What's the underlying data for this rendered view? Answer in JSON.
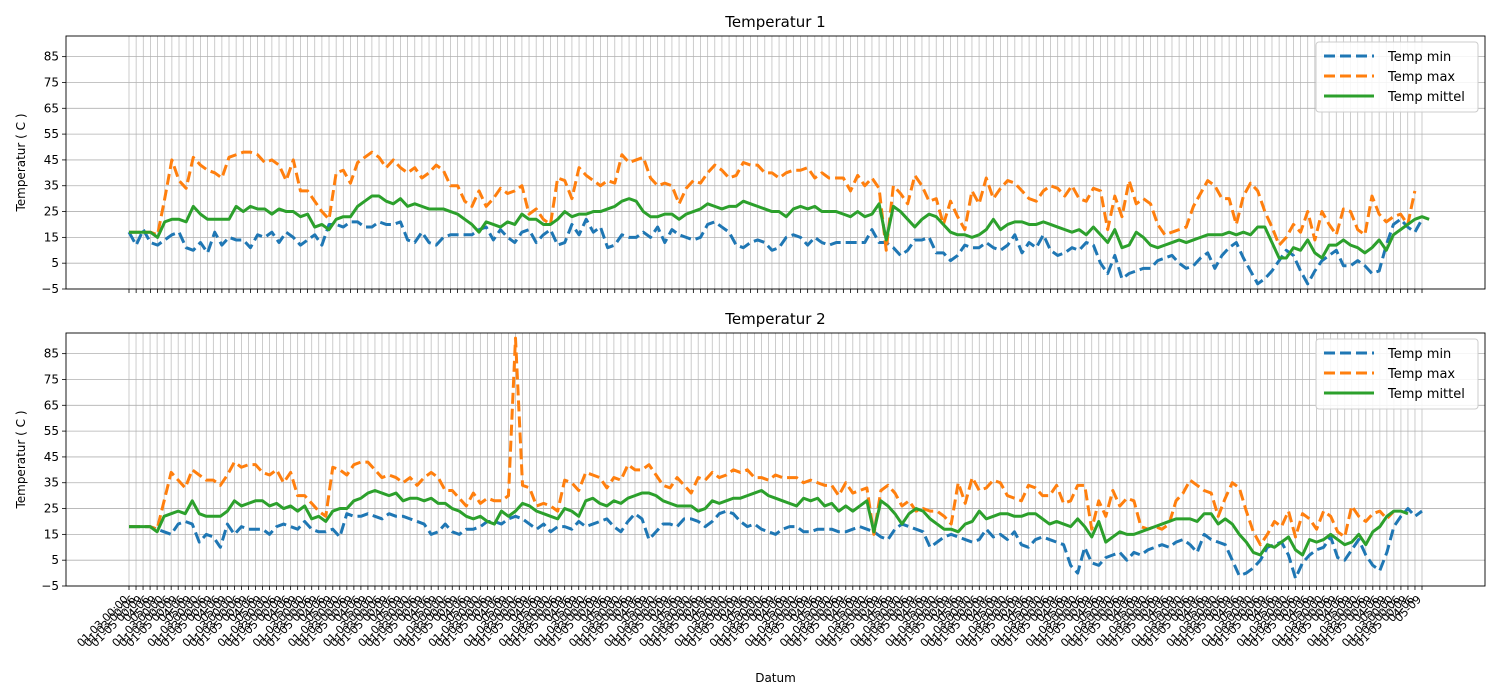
{
  "chart_data": [
    {
      "type": "line",
      "title": "Temperatur 1",
      "xlabel": "",
      "ylabel": "Temperatur ( C )",
      "ylim": [
        -5,
        93
      ],
      "yticks": [
        -5,
        5,
        15,
        25,
        35,
        45,
        55,
        65,
        75,
        85
      ],
      "grid": true,
      "legend_position": "top-right",
      "series": [
        {
          "name": "Temp min",
          "color": "#1f77b4",
          "style": "dashed",
          "values": [
            17,
            12,
            18,
            13,
            12,
            14,
            16,
            17,
            11,
            10,
            13,
            9,
            17,
            12,
            15,
            14,
            14,
            11,
            16,
            15,
            17,
            13,
            17,
            15,
            12,
            14,
            16,
            12,
            20,
            20,
            19,
            21,
            21,
            19,
            19,
            21,
            20,
            20,
            21,
            14,
            13,
            17,
            13,
            12,
            15,
            16,
            16,
            16,
            16,
            18,
            19,
            14,
            18,
            15,
            13,
            17,
            18,
            13,
            16,
            18,
            12,
            13,
            20,
            16,
            22,
            17,
            19,
            11,
            12,
            16,
            15,
            15,
            17,
            15,
            19,
            13,
            18,
            16,
            15,
            14,
            15,
            20,
            21,
            19,
            17,
            12,
            11,
            13,
            14,
            13,
            10,
            11,
            15,
            16,
            15,
            12,
            15,
            13,
            12,
            13,
            13,
            13,
            13,
            13,
            18,
            13,
            13,
            11,
            8,
            10,
            14,
            14,
            15,
            9,
            9,
            6,
            8,
            12,
            11,
            11,
            13,
            11,
            10,
            12,
            16,
            9,
            13,
            11,
            16,
            10,
            8,
            9,
            11,
            10,
            13,
            12,
            5,
            1,
            8,
            -1,
            1,
            2,
            3,
            3,
            6,
            7,
            8,
            5,
            3,
            4,
            7,
            9,
            3,
            8,
            11,
            13,
            7,
            2,
            -3,
            -1,
            2,
            6,
            10,
            8,
            2,
            -3,
            2,
            6,
            8,
            10,
            4,
            4,
            6,
            4,
            1,
            2,
            12,
            20,
            22,
            19,
            17,
            22
          ]
        },
        {
          "name": "Temp max",
          "color": "#ff7f0e",
          "style": "dashed",
          "values": [
            17,
            17,
            17,
            17,
            16,
            30,
            45,
            37,
            34,
            46,
            43,
            41,
            40,
            38,
            46,
            47,
            48,
            48,
            47,
            44,
            45,
            43,
            37,
            45,
            33,
            33,
            29,
            25,
            22,
            40,
            41,
            36,
            44,
            46,
            48,
            46,
            42,
            45,
            42,
            40,
            42,
            38,
            40,
            43,
            41,
            35,
            35,
            29,
            27,
            33,
            27,
            30,
            34,
            32,
            33,
            35,
            24,
            26,
            22,
            20,
            38,
            37,
            30,
            42,
            39,
            37,
            35,
            37,
            36,
            47,
            44,
            45,
            46,
            38,
            35,
            36,
            35,
            28,
            34,
            37,
            36,
            40,
            43,
            41,
            38,
            39,
            44,
            43,
            43,
            40,
            40,
            38,
            40,
            41,
            41,
            42,
            38,
            40,
            38,
            38,
            38,
            33,
            39,
            35,
            38,
            34,
            10,
            35,
            32,
            28,
            39,
            35,
            29,
            30,
            20,
            29,
            23,
            18,
            33,
            28,
            38,
            30,
            34,
            37,
            36,
            33,
            30,
            29,
            33,
            35,
            34,
            31,
            35,
            30,
            29,
            34,
            33,
            18,
            31,
            23,
            37,
            28,
            30,
            28,
            20,
            16,
            17,
            18,
            19,
            27,
            32,
            37,
            35,
            30,
            30,
            20,
            31,
            36,
            33,
            25,
            19,
            12,
            15,
            20,
            17,
            25,
            14,
            25,
            20,
            16,
            26,
            25,
            18,
            16,
            31,
            24,
            21,
            23,
            24,
            20,
            33
          ]
        },
        {
          "name": "Temp mittel",
          "color": "#2ca02c",
          "style": "solid",
          "values": [
            17,
            17,
            17,
            17,
            15,
            21,
            22,
            22,
            21,
            27,
            24,
            22,
            22,
            22,
            22,
            27,
            25,
            27,
            26,
            26,
            24,
            26,
            25,
            25,
            23,
            24,
            19,
            20,
            18,
            22,
            23,
            23,
            27,
            29,
            31,
            31,
            29,
            28,
            30,
            27,
            28,
            27,
            26,
            26,
            26,
            25,
            24,
            22,
            20,
            17,
            21,
            20,
            19,
            21,
            20,
            24,
            22,
            22,
            20,
            20,
            22,
            25,
            23,
            24,
            24,
            25,
            25,
            26,
            27,
            29,
            30,
            29,
            25,
            23,
            23,
            24,
            24,
            22,
            24,
            25,
            26,
            28,
            27,
            26,
            27,
            27,
            29,
            28,
            27,
            26,
            25,
            25,
            23,
            26,
            27,
            26,
            27,
            25,
            25,
            25,
            24,
            23,
            25,
            23,
            24,
            28,
            14,
            27,
            25,
            22,
            19,
            22,
            24,
            23,
            20,
            17,
            16,
            16,
            15,
            16,
            18,
            22,
            18,
            20,
            21,
            21,
            20,
            20,
            21,
            20,
            19,
            18,
            17,
            18,
            16,
            19,
            16,
            13,
            18,
            11,
            12,
            17,
            15,
            12,
            11,
            12,
            13,
            14,
            13,
            14,
            15,
            16,
            16,
            16,
            17,
            16,
            17,
            16,
            19,
            19,
            13,
            7,
            7,
            11,
            10,
            14,
            9,
            7,
            12,
            12,
            14,
            12,
            11,
            9,
            11,
            14,
            10,
            16,
            18,
            20,
            22,
            23,
            22
          ]
        }
      ]
    },
    {
      "type": "line",
      "title": "Temperatur 2",
      "xlabel": "Datum",
      "ylabel": "Temperatur ( C )",
      "ylim": [
        -5,
        93
      ],
      "yticks": [
        -5,
        5,
        15,
        25,
        35,
        45,
        55,
        65,
        75,
        85
      ],
      "grid": true,
      "legend_position": "top-right",
      "x_tick_labels": [
        "01-03 00:00",
        "01-03 00:06",
        "01-05 00:09",
        "04-06",
        "05-09"
      ],
      "series": [
        {
          "name": "Temp min",
          "color": "#1f77b4",
          "style": "dashed",
          "values": [
            18,
            18,
            18,
            18,
            17,
            16,
            15,
            19,
            20,
            19,
            12,
            15,
            14,
            10,
            19,
            15,
            18,
            17,
            17,
            17,
            15,
            18,
            19,
            18,
            17,
            20,
            17,
            16,
            16,
            17,
            14,
            23,
            22,
            22,
            23,
            22,
            21,
            23,
            22,
            22,
            21,
            20,
            19,
            15,
            16,
            19,
            16,
            15,
            17,
            17,
            18,
            20,
            20,
            19,
            21,
            22,
            21,
            19,
            17,
            19,
            16,
            18,
            18,
            17,
            20,
            18,
            19,
            20,
            21,
            18,
            16,
            20,
            23,
            21,
            13,
            16,
            19,
            19,
            18,
            21,
            21,
            20,
            18,
            20,
            23,
            24,
            23,
            20,
            18,
            19,
            17,
            16,
            15,
            17,
            18,
            18,
            16,
            16,
            17,
            17,
            17,
            16,
            16,
            17,
            18,
            17,
            16,
            14,
            13,
            17,
            19,
            18,
            17,
            16,
            10,
            12,
            14,
            15,
            14,
            13,
            12,
            13,
            17,
            14,
            15,
            13,
            16,
            11,
            10,
            13,
            14,
            13,
            12,
            11,
            3,
            0,
            10,
            4,
            3,
            6,
            7,
            8,
            5,
            8,
            7,
            9,
            10,
            11,
            10,
            12,
            13,
            11,
            8,
            15,
            13,
            12,
            11,
            5,
            -1,
            0,
            2,
            5,
            10,
            11,
            12,
            7,
            -2,
            4,
            7,
            9,
            10,
            14,
            6,
            5,
            9,
            13,
            7,
            3,
            1,
            8,
            18,
            22,
            25,
            22,
            24
          ]
        },
        {
          "name": "Temp max",
          "color": "#ff7f0e",
          "style": "dashed",
          "values": [
            18,
            18,
            18,
            18,
            17,
            28,
            39,
            36,
            33,
            40,
            38,
            36,
            36,
            34,
            38,
            43,
            41,
            42,
            42,
            39,
            38,
            40,
            35,
            39,
            30,
            30,
            27,
            24,
            22,
            41,
            40,
            38,
            42,
            43,
            43,
            40,
            37,
            38,
            37,
            35,
            37,
            34,
            37,
            39,
            37,
            32,
            32,
            29,
            26,
            31,
            27,
            29,
            28,
            28,
            30,
            91,
            34,
            33,
            26,
            27,
            26,
            24,
            36,
            35,
            32,
            39,
            38,
            37,
            33,
            37,
            36,
            42,
            40,
            40,
            42,
            38,
            34,
            33,
            37,
            34,
            31,
            37,
            36,
            39,
            37,
            38,
            40,
            39,
            40,
            37,
            37,
            36,
            38,
            37,
            37,
            37,
            35,
            36,
            35,
            34,
            34,
            30,
            35,
            31,
            32,
            33,
            15,
            32,
            34,
            31,
            26,
            28,
            24,
            25,
            24,
            24,
            22,
            19,
            35,
            27,
            37,
            32,
            33,
            36,
            35,
            30,
            29,
            28,
            34,
            33,
            30,
            30,
            34,
            27,
            28,
            34,
            34,
            17,
            28,
            22,
            32,
            26,
            29,
            28,
            18,
            17,
            18,
            17,
            19,
            28,
            31,
            36,
            34,
            32,
            31,
            22,
            29,
            35,
            33,
            24,
            16,
            11,
            15,
            20,
            18,
            24,
            14,
            23,
            21,
            17,
            24,
            22,
            16,
            14,
            26,
            22,
            20,
            23,
            24,
            21,
            24
          ]
        },
        {
          "name": "Temp mittel",
          "color": "#2ca02c",
          "style": "solid",
          "values": [
            18,
            18,
            18,
            18,
            16,
            22,
            23,
            24,
            23,
            28,
            23,
            22,
            22,
            22,
            24,
            28,
            26,
            27,
            28,
            28,
            26,
            27,
            25,
            26,
            24,
            26,
            21,
            22,
            20,
            24,
            25,
            25,
            28,
            29,
            31,
            32,
            31,
            30,
            31,
            28,
            29,
            29,
            28,
            29,
            27,
            27,
            25,
            24,
            22,
            21,
            22,
            20,
            19,
            24,
            22,
            24,
            27,
            26,
            24,
            23,
            22,
            21,
            25,
            24,
            22,
            28,
            29,
            27,
            26,
            28,
            27,
            29,
            30,
            31,
            31,
            30,
            28,
            27,
            26,
            26,
            26,
            24,
            25,
            28,
            27,
            28,
            29,
            29,
            30,
            31,
            32,
            30,
            29,
            28,
            27,
            26,
            29,
            28,
            29,
            26,
            27,
            24,
            26,
            24,
            26,
            28,
            16,
            28,
            26,
            23,
            19,
            23,
            25,
            24,
            21,
            19,
            17,
            17,
            16,
            19,
            20,
            24,
            21,
            22,
            23,
            23,
            22,
            22,
            23,
            23,
            21,
            19,
            20,
            19,
            18,
            21,
            18,
            14,
            20,
            12,
            14,
            16,
            15,
            15,
            16,
            17,
            18,
            19,
            20,
            21,
            21,
            21,
            20,
            23,
            23,
            19,
            21,
            19,
            15,
            12,
            8,
            7,
            11,
            10,
            12,
            14,
            9,
            7,
            13,
            12,
            13,
            15,
            13,
            11,
            12,
            15,
            11,
            16,
            18,
            22,
            24,
            24,
            23
          ]
        }
      ]
    }
  ]
}
